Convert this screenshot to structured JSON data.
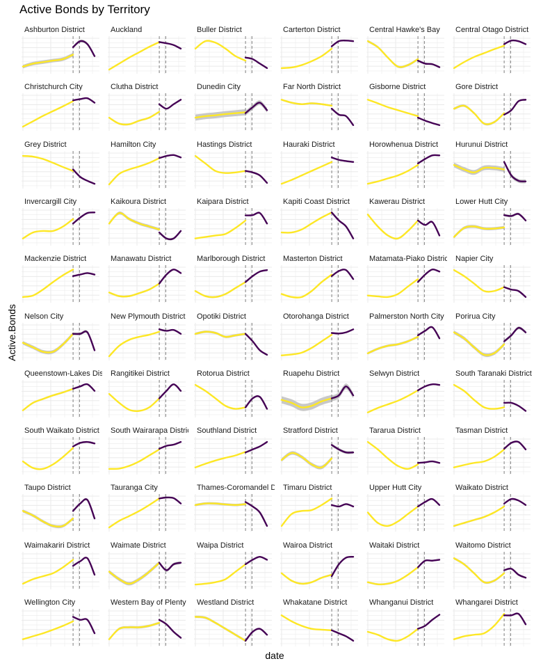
{
  "chart_data": {
    "type": "line",
    "title": "Active Bonds by Territory",
    "xlabel": "date",
    "ylabel": "Active.Bonds",
    "grid": true,
    "layout": "facets 6 columns x 11 rows",
    "note": "y values normalized 0-1 per panel (free scales, no tick labels shown); pre = yellow smoothed trend before break, post = purple trend after break; se = ribbon half-width",
    "break_markers_x": [
      0.7,
      0.79
    ],
    "colors": {
      "pre": "#fde725",
      "post": "#440154",
      "ribbon": "#c8c8c8",
      "dash": "#7f7f7f",
      "grid": "#ebebeb"
    },
    "panels": [
      {
        "name": "Ashburton District",
        "pre": [
          0.1,
          0.2,
          0.25,
          0.3,
          0.35,
          0.5
        ],
        "post": [
          0.75,
          0.95,
          0.85,
          0.45
        ],
        "se": 0.06
      },
      {
        "name": "Auckland",
        "pre": [
          0,
          0.2,
          0.4,
          0.58,
          0.76,
          0.92
        ],
        "post": [
          0.92,
          0.88,
          0.82,
          0.7
        ],
        "se": 0.01
      },
      {
        "name": "Buller District",
        "pre": [
          0.7,
          0.95,
          0.9,
          0.7,
          0.45,
          0.3
        ],
        "post": [
          0.4,
          0.35,
          0.2,
          0.05
        ],
        "se": 0.01
      },
      {
        "name": "Carterton District",
        "pre": [
          0.05,
          0.07,
          0.15,
          0.28,
          0.45,
          0.7
        ],
        "post": [
          0.78,
          0.95,
          0.97,
          0.95
        ],
        "se": 0.01
      },
      {
        "name": "Central Hawke's Bay",
        "pre": [
          0.95,
          0.75,
          0.4,
          0.1,
          0.15,
          0.35
        ],
        "post": [
          0.3,
          0.2,
          0.18,
          0.08
        ],
        "se": 0.04
      },
      {
        "name": "Central Otago District",
        "pre": [
          0.05,
          0.25,
          0.42,
          0.55,
          0.68,
          0.8
        ],
        "post": [
          0.85,
          0.97,
          0.95,
          0.85
        ],
        "se": 0.01
      },
      {
        "name": "Christchurch City",
        "pre": [
          0,
          0.18,
          0.36,
          0.52,
          0.68,
          0.85
        ],
        "post": [
          0.88,
          0.92,
          0.95,
          0.8
        ],
        "se": 0.01
      },
      {
        "name": "Clutha District",
        "pre": [
          0.3,
          0.1,
          0.08,
          0.2,
          0.3,
          0.5
        ],
        "post": [
          0.75,
          0.6,
          0.75,
          0.9
        ],
        "se": 0.03
      },
      {
        "name": "Dunedin City",
        "pre": [
          0.3,
          0.35,
          0.38,
          0.42,
          0.45,
          0.48
        ],
        "post": [
          0.45,
          0.65,
          0.8,
          0.55
        ],
        "se": 0.1
      },
      {
        "name": "Far North District",
        "pre": [
          0.9,
          0.8,
          0.75,
          0.78,
          0.75,
          0.7
        ],
        "post": [
          0.6,
          0.4,
          0.35,
          0.05
        ],
        "se": 0.03
      },
      {
        "name": "Gisborne District",
        "pre": [
          0.9,
          0.78,
          0.65,
          0.55,
          0.45,
          0.35
        ],
        "post": [
          0.3,
          0.2,
          0.12,
          0.05
        ],
        "se": 0.01
      },
      {
        "name": "Gore District",
        "pre": [
          0.6,
          0.7,
          0.45,
          0.1,
          0.15,
          0.45
        ],
        "post": [
          0.4,
          0.55,
          0.85,
          0.9
        ],
        "se": 0.04
      },
      {
        "name": "Grey District",
        "pre": [
          0.95,
          0.93,
          0.85,
          0.72,
          0.58,
          0.45
        ],
        "post": [
          0.5,
          0.25,
          0.12,
          0.02
        ],
        "se": 0.01
      },
      {
        "name": "Hamilton City",
        "pre": [
          0,
          0.35,
          0.5,
          0.6,
          0.72,
          0.88
        ],
        "post": [
          0.88,
          0.95,
          0.98,
          0.9
        ],
        "se": 0.01
      },
      {
        "name": "Hastings District",
        "pre": [
          0.95,
          0.7,
          0.45,
          0.38,
          0.4,
          0.45
        ],
        "post": [
          0.45,
          0.4,
          0.3,
          0.05
        ],
        "se": 0.02
      },
      {
        "name": "Hauraki District",
        "pre": [
          0.02,
          0.15,
          0.3,
          0.45,
          0.6,
          0.75
        ],
        "post": [
          0.9,
          0.82,
          0.78,
          0.75
        ],
        "se": 0.01
      },
      {
        "name": "Horowhenua District",
        "pre": [
          0.02,
          0.1,
          0.2,
          0.3,
          0.45,
          0.65
        ],
        "post": [
          0.7,
          0.85,
          0.97,
          0.97
        ],
        "se": 0.01
      },
      {
        "name": "Hurunui District",
        "pre": [
          0.65,
          0.5,
          0.4,
          0.55,
          0.55,
          0.5
        ],
        "post": [
          0.75,
          0.3,
          0.12,
          0.1
        ],
        "se": 0.08
      },
      {
        "name": "Invercargill City",
        "pre": [
          0.1,
          0.3,
          0.35,
          0.35,
          0.5,
          0.75
        ],
        "post": [
          0.6,
          0.8,
          0.95,
          0.97
        ],
        "se": 0.01
      },
      {
        "name": "Kaikoura District",
        "pre": [
          0.6,
          0.95,
          0.75,
          0.6,
          0.5,
          0.4
        ],
        "post": [
          0.3,
          0.1,
          0.1,
          0.35
        ],
        "se": 0.05
      },
      {
        "name": "Kaipara District",
        "pre": [
          0.1,
          0.15,
          0.2,
          0.25,
          0.45,
          0.7
        ],
        "post": [
          0.87,
          0.88,
          0.95,
          0.6
        ],
        "se": 0.02
      },
      {
        "name": "Kapiti Coast District",
        "pre": [
          0.3,
          0.3,
          0.4,
          0.6,
          0.8,
          0.97
        ],
        "post": [
          0.97,
          0.7,
          0.5,
          0.1
        ],
        "se": 0.01
      },
      {
        "name": "Kawerau District",
        "pre": [
          0.9,
          0.5,
          0.2,
          0.1,
          0.35,
          0.7
        ],
        "post": [
          0.7,
          0.55,
          0.65,
          0.2
        ],
        "se": 0.03
      },
      {
        "name": "Lower Hutt City",
        "pre": [
          0.15,
          0.45,
          0.5,
          0.43,
          0.43,
          0.47
        ],
        "post": [
          0.88,
          0.85,
          0.92,
          0.7
        ],
        "se": 0.05
      },
      {
        "name": "Mackenzie District",
        "pre": [
          0.05,
          0.1,
          0.3,
          0.55,
          0.78,
          0.97
        ],
        "post": [
          0.75,
          0.8,
          0.85,
          0.8
        ],
        "se": 0.01
      },
      {
        "name": "Manawatu District",
        "pre": [
          0.2,
          0.08,
          0.08,
          0.18,
          0.3,
          0.5
        ],
        "post": [
          0.5,
          0.8,
          0.97,
          0.85
        ],
        "se": 0.03
      },
      {
        "name": "Marlborough District",
        "pre": [
          0.25,
          0.08,
          0.05,
          0.15,
          0.35,
          0.55
        ],
        "post": [
          0.55,
          0.75,
          0.9,
          0.95
        ],
        "se": 0.03
      },
      {
        "name": "Masterton District",
        "pre": [
          0.15,
          0.05,
          0.05,
          0.25,
          0.55,
          0.8
        ],
        "post": [
          0.75,
          0.92,
          0.95,
          0.65
        ],
        "se": 0.01
      },
      {
        "name": "Matamata-Piako District",
        "pre": [
          0.1,
          0.07,
          0.05,
          0.15,
          0.4,
          0.65
        ],
        "post": [
          0.55,
          0.8,
          0.97,
          0.9
        ],
        "se": 0.01
      },
      {
        "name": "Napier City",
        "pre": [
          0.95,
          0.75,
          0.5,
          0.25,
          0.25,
          0.38
        ],
        "post": [
          0.38,
          0.3,
          0.25,
          0.05
        ],
        "se": 0.01
      },
      {
        "name": "Nelson City",
        "pre": [
          0.45,
          0.3,
          0.15,
          0.15,
          0.4,
          0.75
        ],
        "post": [
          0.75,
          0.75,
          0.8,
          0.2
        ],
        "se": 0.06
      },
      {
        "name": "New Plymouth District",
        "pre": [
          0,
          0.35,
          0.55,
          0.65,
          0.72,
          0.82
        ],
        "post": [
          0.9,
          0.85,
          0.88,
          0.75
        ],
        "se": 0.01
      },
      {
        "name": "Opotiki District",
        "pre": [
          0.75,
          0.82,
          0.78,
          0.65,
          0.7,
          0.75
        ],
        "post": [
          0.75,
          0.5,
          0.2,
          0.05
        ],
        "se": 0.04
      },
      {
        "name": "Otorohanga District",
        "pre": [
          0.03,
          0.06,
          0.12,
          0.28,
          0.5,
          0.72
        ],
        "post": [
          0.78,
          0.76,
          0.8,
          0.9
        ],
        "se": 0.01
      },
      {
        "name": "Palmerston North City",
        "pre": [
          0.1,
          0.25,
          0.35,
          0.4,
          0.5,
          0.65
        ],
        "post": [
          0.7,
          0.85,
          0.97,
          0.6
        ],
        "se": 0.04
      },
      {
        "name": "Porirua City",
        "pre": [
          0.8,
          0.6,
          0.3,
          0.05,
          0.1,
          0.4
        ],
        "post": [
          0.5,
          0.7,
          0.95,
          0.8
        ],
        "se": 0.06
      },
      {
        "name": "Queenstown-Lakes District",
        "pre": [
          0.1,
          0.35,
          0.48,
          0.6,
          0.7,
          0.82
        ],
        "post": [
          0.82,
          0.9,
          0.97,
          0.75
        ],
        "se": 0.03
      },
      {
        "name": "Rangitikei District",
        "pre": [
          0.65,
          0.35,
          0.12,
          0.08,
          0.2,
          0.5
        ],
        "post": [
          0.5,
          0.75,
          0.97,
          0.75
        ],
        "se": 0.01
      },
      {
        "name": "Rotorua District",
        "pre": [
          0.95,
          0.75,
          0.5,
          0.25,
          0.15,
          0.2
        ],
        "post": [
          0.2,
          0.5,
          0.55,
          0.15
        ],
        "se": 0.01
      },
      {
        "name": "Ruapehu District",
        "pre": [
          0.45,
          0.35,
          0.2,
          0.25,
          0.4,
          0.5
        ],
        "post": [
          0.5,
          0.6,
          0.9,
          0.6
        ],
        "se": 0.12
      },
      {
        "name": "Selwyn District",
        "pre": [
          0.03,
          0.18,
          0.3,
          0.42,
          0.58,
          0.77
        ],
        "post": [
          0.77,
          0.9,
          0.97,
          0.95
        ],
        "se": 0.01
      },
      {
        "name": "South Taranaki District",
        "pre": [
          0.95,
          0.75,
          0.45,
          0.2,
          0.15,
          0.2
        ],
        "post": [
          0.35,
          0.35,
          0.25,
          0.08
        ],
        "se": 0.02
      },
      {
        "name": "South Waikato District",
        "pre": [
          0.3,
          0.08,
          0.05,
          0.2,
          0.45,
          0.75
        ],
        "post": [
          0.8,
          0.92,
          0.95,
          0.9
        ],
        "se": 0.01
      },
      {
        "name": "South Wairarapa District",
        "pre": [
          0.05,
          0.06,
          0.15,
          0.3,
          0.5,
          0.7
        ],
        "post": [
          0.72,
          0.82,
          0.86,
          0.95
        ],
        "se": 0.01
      },
      {
        "name": "Southland District",
        "pre": [
          0.1,
          0.22,
          0.33,
          0.42,
          0.5,
          0.62
        ],
        "post": [
          0.6,
          0.7,
          0.8,
          0.95
        ],
        "se": 0.01
      },
      {
        "name": "Stratford District",
        "pre": [
          0.35,
          0.58,
          0.45,
          0.2,
          0.1,
          0.4
        ],
        "post": [
          0.85,
          0.7,
          0.6,
          0.6
        ],
        "se": 0.06
      },
      {
        "name": "Tararua District",
        "pre": [
          0.95,
          0.7,
          0.4,
          0.15,
          0.05,
          0.2
        ],
        "post": [
          0.25,
          0.27,
          0.3,
          0.25
        ],
        "se": 0.01
      },
      {
        "name": "Tasman District",
        "pre": [
          0.1,
          0.18,
          0.25,
          0.3,
          0.45,
          0.7
        ],
        "post": [
          0.72,
          0.92,
          0.95,
          0.7
        ],
        "se": 0.01
      },
      {
        "name": "Taupo District",
        "pre": [
          0.55,
          0.4,
          0.2,
          0.05,
          0.05,
          0.3
        ],
        "post": [
          0.55,
          0.8,
          0.92,
          0.3
        ],
        "se": 0.05
      },
      {
        "name": "Tauranga City",
        "pre": [
          0,
          0.22,
          0.38,
          0.55,
          0.75,
          0.97
        ],
        "post": [
          0.97,
          1.0,
          0.98,
          0.8
        ],
        "se": 0.01
      },
      {
        "name": "Thames-Coromandel District",
        "pre": [
          0.75,
          0.8,
          0.8,
          0.77,
          0.75,
          0.78
        ],
        "post": [
          0.85,
          0.7,
          0.5,
          0.05
        ],
        "se": 0.04
      },
      {
        "name": "Timaru District",
        "pre": [
          0.05,
          0.45,
          0.55,
          0.58,
          0.75,
          0.97
        ],
        "post": [
          0.75,
          0.7,
          0.78,
          0.7
        ],
        "se": 0.01
      },
      {
        "name": "Upper Hutt City",
        "pre": [
          0.5,
          0.15,
          0.05,
          0.2,
          0.45,
          0.7
        ],
        "post": [
          0.7,
          0.85,
          0.95,
          0.75
        ],
        "se": 0.01
      },
      {
        "name": "Waikato District",
        "pre": [
          0.05,
          0.15,
          0.25,
          0.35,
          0.5,
          0.7
        ],
        "post": [
          0.8,
          0.95,
          0.9,
          0.75
        ],
        "se": 0.03
      },
      {
        "name": "Waimakariri District",
        "pre": [
          0.05,
          0.2,
          0.3,
          0.4,
          0.6,
          0.85
        ],
        "post": [
          0.65,
          0.8,
          0.9,
          0.35
        ],
        "se": 0.01
      },
      {
        "name": "Waimate District",
        "pre": [
          0.45,
          0.2,
          0.05,
          0.2,
          0.45,
          0.75
        ],
        "post": [
          0.75,
          0.5,
          0.7,
          0.75
        ],
        "se": 0.06
      },
      {
        "name": "Waipa District",
        "pre": [
          0.02,
          0.05,
          0.1,
          0.2,
          0.45,
          0.7
        ],
        "post": [
          0.7,
          0.85,
          0.95,
          0.85
        ],
        "se": 0.01
      },
      {
        "name": "Wairoa District",
        "pre": [
          0.4,
          0.15,
          0.05,
          0.1,
          0.25,
          0.35
        ],
        "post": [
          0.3,
          0.7,
          0.92,
          0.95
        ],
        "se": 0.03
      },
      {
        "name": "Waitaki District",
        "pre": [
          0.1,
          0.03,
          0.05,
          0.15,
          0.35,
          0.6
        ],
        "post": [
          0.6,
          0.82,
          0.82,
          0.85
        ],
        "se": 0.03
      },
      {
        "name": "Waitomo District",
        "pre": [
          0.9,
          0.7,
          0.4,
          0.1,
          0.15,
          0.4
        ],
        "post": [
          0.5,
          0.55,
          0.35,
          0.25
        ],
        "se": 0.04
      },
      {
        "name": "Wellington City",
        "pre": [
          0.1,
          0.2,
          0.3,
          0.42,
          0.55,
          0.7
        ],
        "post": [
          0.85,
          0.75,
          0.75,
          0.3
        ],
        "se": 0.02
      },
      {
        "name": "Western Bay of Plenty District",
        "pre": [
          0.1,
          0.45,
          0.5,
          0.5,
          0.55,
          0.65
        ],
        "post": [
          0.75,
          0.6,
          0.35,
          0.15
        ],
        "se": 0.04
      },
      {
        "name": "Westland District",
        "pre": [
          0.85,
          0.82,
          0.65,
          0.45,
          0.25,
          0.05
        ],
        "post": [
          0.05,
          0.35,
          0.45,
          0.25
        ],
        "se": 0.04
      },
      {
        "name": "Whakatane District",
        "pre": [
          0.9,
          0.7,
          0.55,
          0.45,
          0.42,
          0.4
        ],
        "post": [
          0.4,
          0.3,
          0.2,
          0.05
        ],
        "se": 0.01
      },
      {
        "name": "Whanganui District",
        "pre": [
          0.35,
          0.25,
          0.1,
          0.05,
          0.2,
          0.45
        ],
        "post": [
          0.45,
          0.55,
          0.75,
          0.92
        ],
        "se": 0.02
      },
      {
        "name": "Whangarei District",
        "pre": [
          0.1,
          0.2,
          0.25,
          0.3,
          0.55,
          0.95
        ],
        "post": [
          0.9,
          0.9,
          0.95,
          0.6
        ],
        "se": 0.01
      }
    ]
  }
}
